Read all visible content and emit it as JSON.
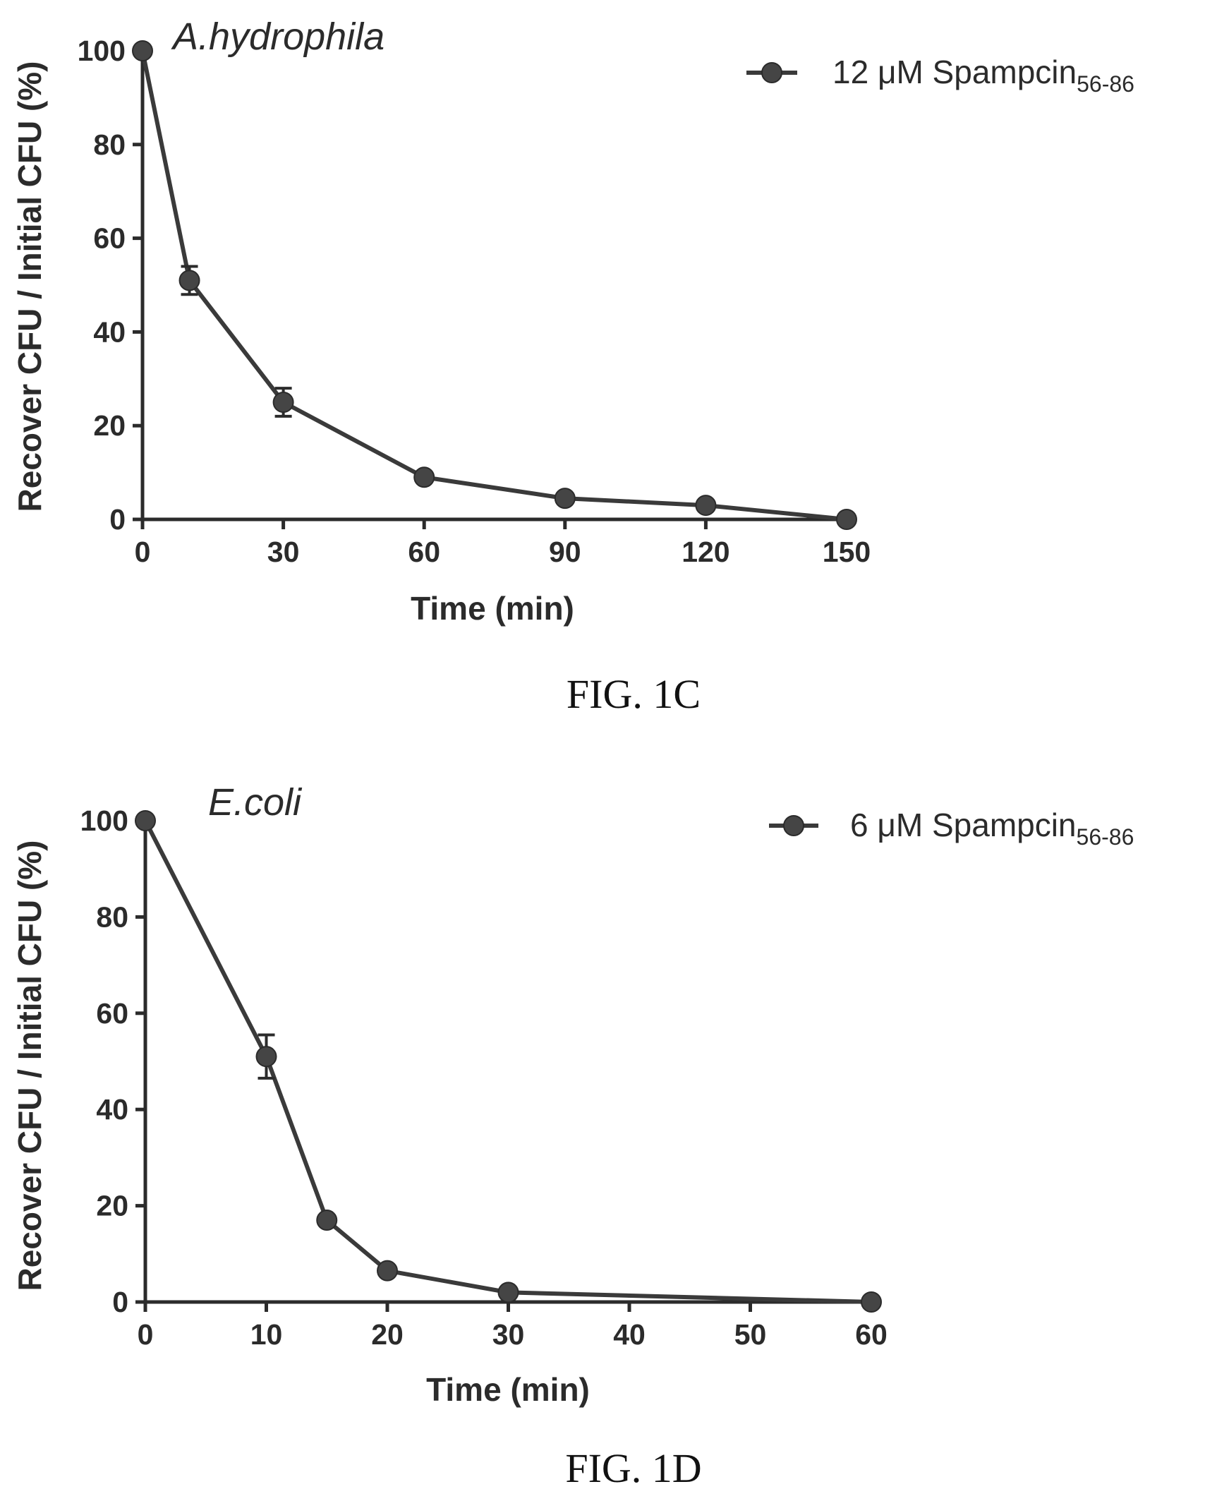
{
  "chart_data": [
    {
      "type": "line",
      "panel_caption": "FIG. 1C",
      "organism": "A.hydrophila",
      "xlabel": "Time (min)",
      "ylabel": "Recover CFU / Initial CFU (%)",
      "xlim": [
        0,
        150
      ],
      "ylim": [
        0,
        100
      ],
      "x_ticks": [
        "0",
        "30",
        "60",
        "90",
        "120",
        "150"
      ],
      "y_ticks": [
        "0",
        "20",
        "40",
        "60",
        "80",
        "100"
      ],
      "legend": {
        "position": "top-right",
        "label": "12 μM Spampcin",
        "subscript": "56-86"
      },
      "series": [
        {
          "name": "12 μM Spampcin56-86",
          "x": [
            0,
            10,
            30,
            60,
            90,
            120,
            150
          ],
          "y": [
            100,
            51,
            25,
            9,
            4.5,
            3,
            0
          ],
          "err": [
            0,
            3,
            3,
            0,
            0,
            0,
            0
          ]
        }
      ]
    },
    {
      "type": "line",
      "panel_caption": "FIG. 1D",
      "organism": "E.coli",
      "xlabel": "Time (min)",
      "ylabel": "Recover CFU / Initial CFU (%)",
      "xlim": [
        0,
        60
      ],
      "ylim": [
        0,
        100
      ],
      "x_ticks": [
        "0",
        "10",
        "20",
        "30",
        "40",
        "50",
        "60"
      ],
      "y_ticks": [
        "0",
        "20",
        "40",
        "60",
        "80",
        "100"
      ],
      "legend": {
        "position": "top-right",
        "label": "6 μM Spampcin",
        "subscript": "56-86"
      },
      "series": [
        {
          "name": "6 μM Spampcin56-86",
          "x": [
            0,
            10,
            15,
            20,
            30,
            60
          ],
          "y": [
            100,
            51,
            17,
            6.5,
            2,
            0
          ],
          "err": [
            0,
            4.5,
            0,
            0,
            0,
            0
          ]
        }
      ]
    }
  ]
}
